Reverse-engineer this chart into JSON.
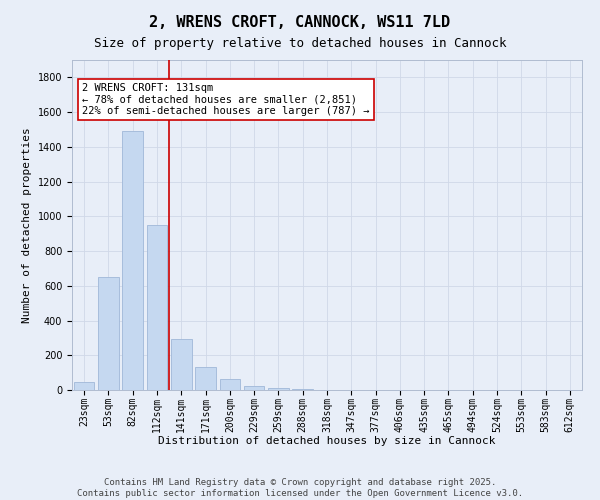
{
  "title": "2, WRENS CROFT, CANNOCK, WS11 7LD",
  "subtitle": "Size of property relative to detached houses in Cannock",
  "xlabel": "Distribution of detached houses by size in Cannock",
  "ylabel": "Number of detached properties",
  "categories": [
    "23sqm",
    "53sqm",
    "82sqm",
    "112sqm",
    "141sqm",
    "171sqm",
    "200sqm",
    "229sqm",
    "259sqm",
    "288sqm",
    "318sqm",
    "347sqm",
    "377sqm",
    "406sqm",
    "435sqm",
    "465sqm",
    "494sqm",
    "524sqm",
    "553sqm",
    "583sqm",
    "612sqm"
  ],
  "values": [
    45,
    650,
    1490,
    950,
    295,
    135,
    65,
    22,
    10,
    5,
    2,
    1,
    0,
    0,
    0,
    0,
    0,
    0,
    0,
    0,
    0
  ],
  "bar_color": "#c5d8f0",
  "bar_edge_color": "#a0b8d8",
  "vline_x_index": 3.5,
  "vline_color": "#cc0000",
  "annotation_text": "2 WRENS CROFT: 131sqm\n← 78% of detached houses are smaller (2,851)\n22% of semi-detached houses are larger (787) →",
  "annotation_box_color": "#ffffff",
  "annotation_box_edge": "#cc0000",
  "ylim": [
    0,
    1900
  ],
  "yticks": [
    0,
    200,
    400,
    600,
    800,
    1000,
    1200,
    1400,
    1600,
    1800
  ],
  "grid_color": "#d0d8e8",
  "background_color": "#e8eef8",
  "footer_line1": "Contains HM Land Registry data © Crown copyright and database right 2025.",
  "footer_line2": "Contains public sector information licensed under the Open Government Licence v3.0.",
  "title_fontsize": 11,
  "subtitle_fontsize": 9,
  "label_fontsize": 8,
  "tick_fontsize": 7,
  "annotation_fontsize": 7.5,
  "footer_fontsize": 6.5
}
